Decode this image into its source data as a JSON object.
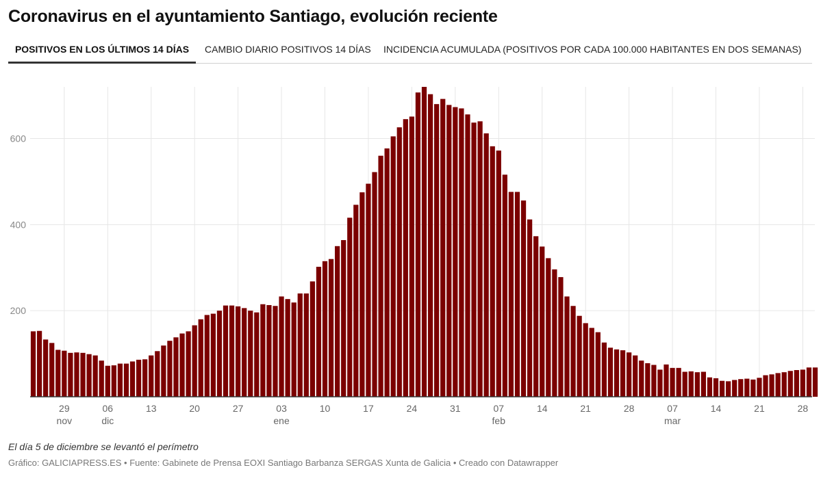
{
  "title": "Coronavirus en el ayuntamiento Santiago, evolución reciente",
  "tabs": [
    {
      "label": "POSITIVOS EN LOS ÚLTIMOS 14 DÍAS",
      "active": true
    },
    {
      "label": "CAMBIO DIARIO POSITIVOS 14 DÍAS",
      "active": false
    },
    {
      "label": "INCIDENCIA ACUMULADA (POSITIVOS POR CADA 100.000 HABITANTES EN DOS SEMANAS)",
      "active": false
    }
  ],
  "note": "El día 5 de diciembre se levantó el perímetro",
  "credit": "Gráfico: GALICIAPRESS.ES • Fuente: Gabinete de Prensa EOXI Santiago Barbanza SERGAS Xunta de Galicia • Creado con Datawrapper",
  "colors": {
    "bar": "#7b0000",
    "grid": "#e6e6e6",
    "baseline": "#333333"
  },
  "chart_data": {
    "type": "bar",
    "ylim": [
      0,
      720
    ],
    "yticks": [
      200,
      400,
      600
    ],
    "grid": true,
    "x_start": "2020-11-24",
    "x_end": "2021-03-29",
    "x_ticks": [
      {
        "date": "2020-11-29",
        "day": "29",
        "month": "nov"
      },
      {
        "date": "2020-12-06",
        "day": "06",
        "month": "dic"
      },
      {
        "date": "2020-12-13",
        "day": "13",
        "month": ""
      },
      {
        "date": "2020-12-20",
        "day": "20",
        "month": ""
      },
      {
        "date": "2020-12-27",
        "day": "27",
        "month": ""
      },
      {
        "date": "2021-01-03",
        "day": "03",
        "month": "ene"
      },
      {
        "date": "2021-01-10",
        "day": "10",
        "month": ""
      },
      {
        "date": "2021-01-17",
        "day": "17",
        "month": ""
      },
      {
        "date": "2021-01-24",
        "day": "24",
        "month": ""
      },
      {
        "date": "2021-01-31",
        "day": "31",
        "month": ""
      },
      {
        "date": "2021-02-07",
        "day": "07",
        "month": "feb"
      },
      {
        "date": "2021-02-14",
        "day": "14",
        "month": ""
      },
      {
        "date": "2021-02-21",
        "day": "21",
        "month": ""
      },
      {
        "date": "2021-02-28",
        "day": "28",
        "month": ""
      },
      {
        "date": "2021-03-07",
        "day": "07",
        "month": "mar"
      },
      {
        "date": "2021-03-14",
        "day": "14",
        "month": ""
      },
      {
        "date": "2021-03-21",
        "day": "21",
        "month": ""
      },
      {
        "date": "2021-03-28",
        "day": "28",
        "month": ""
      }
    ],
    "values": [
      152,
      153,
      133,
      125,
      109,
      107,
      102,
      103,
      102,
      99,
      96,
      84,
      72,
      73,
      77,
      77,
      82,
      86,
      87,
      96,
      106,
      119,
      130,
      138,
      147,
      152,
      166,
      180,
      190,
      193,
      200,
      212,
      212,
      210,
      206,
      200,
      196,
      215,
      213,
      211,
      233,
      227,
      219,
      240,
      240,
      268,
      302,
      315,
      320,
      350,
      364,
      416,
      446,
      475,
      495,
      522,
      560,
      577,
      605,
      626,
      645,
      651,
      707,
      720,
      703,
      680,
      692,
      678,
      673,
      670,
      656,
      637,
      640,
      612,
      582,
      572,
      516,
      476,
      476,
      456,
      412,
      373,
      349,
      322,
      296,
      278,
      233,
      211,
      188,
      171,
      160,
      150,
      126,
      114,
      110,
      108,
      103,
      96,
      84,
      78,
      74,
      63,
      75,
      67,
      67,
      58,
      59,
      57,
      58,
      45,
      43,
      37,
      36,
      39,
      41,
      42,
      40,
      44,
      50,
      52,
      55,
      57,
      60,
      62,
      63,
      68,
      68
    ]
  }
}
